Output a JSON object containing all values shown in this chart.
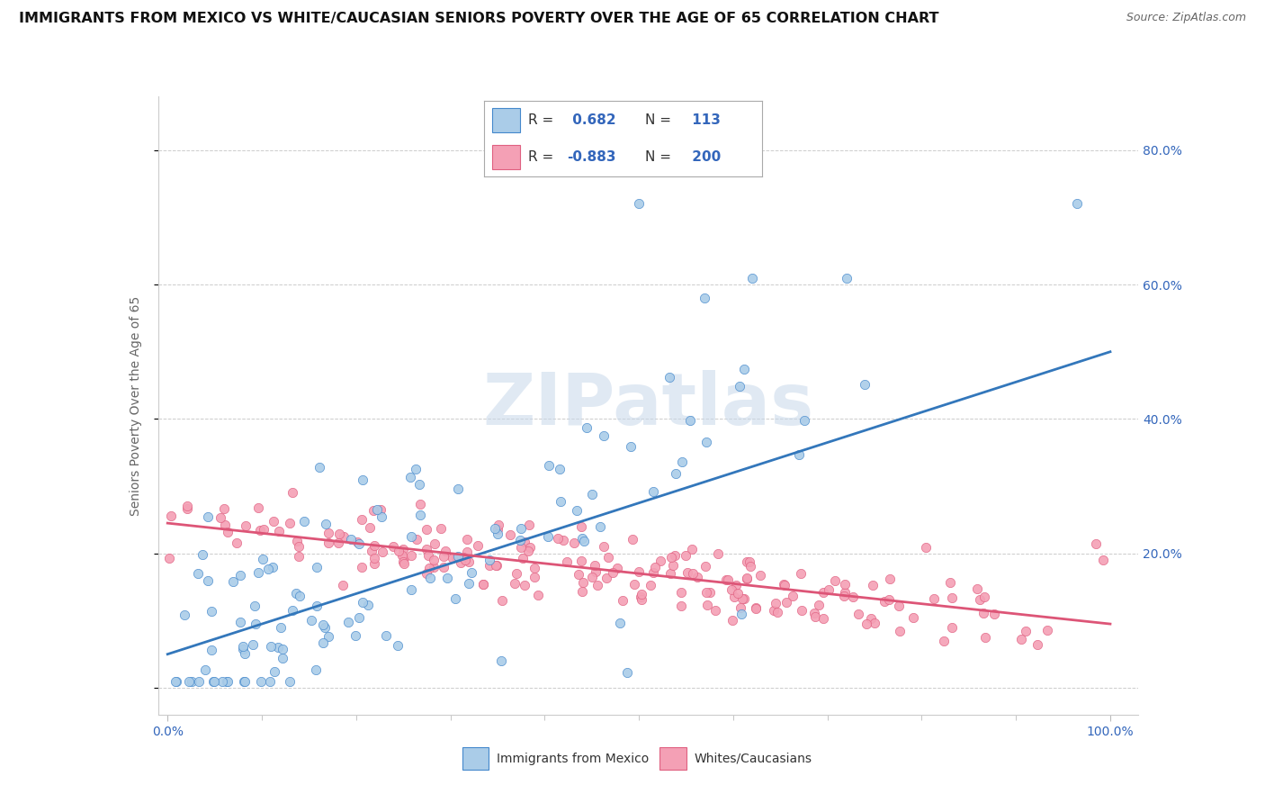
{
  "title": "IMMIGRANTS FROM MEXICO VS WHITE/CAUCASIAN SENIORS POVERTY OVER THE AGE OF 65 CORRELATION CHART",
  "source": "Source: ZipAtlas.com",
  "ylabel": "Seniors Poverty Over the Age of 65",
  "xlim": [
    -0.01,
    1.03
  ],
  "ylim": [
    -0.04,
    0.88
  ],
  "yticks": [
    0.0,
    0.2,
    0.4,
    0.6,
    0.8
  ],
  "ytick_labels": [
    "",
    "20.0%",
    "40.0%",
    "60.0%",
    "80.0%"
  ],
  "xtick_labels": [
    "0.0%",
    "100.0%"
  ],
  "blue_R": 0.682,
  "blue_N": 113,
  "pink_R": -0.883,
  "pink_N": 200,
  "blue_fill": "#aacce8",
  "pink_fill": "#f4a0b5",
  "blue_edge": "#4488cc",
  "pink_edge": "#e06080",
  "blue_line": "#3377bb",
  "pink_line": "#dd5577",
  "legend_label_blue": "Immigrants from Mexico",
  "legend_label_pink": "Whites/Caucasians",
  "watermark": "ZIPatlas",
  "bg": "#ffffff",
  "blue_trend_x": [
    0.0,
    1.0
  ],
  "blue_trend_y": [
    0.05,
    0.5
  ],
  "pink_trend_x": [
    0.0,
    1.0
  ],
  "pink_trend_y": [
    0.245,
    0.095
  ]
}
